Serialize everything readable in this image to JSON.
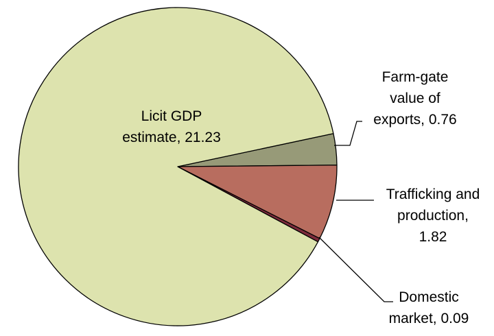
{
  "chart_data": {
    "type": "pie",
    "title": "",
    "legend": "none",
    "slices": [
      {
        "name": "Licit GDP estimate",
        "value": 21.23,
        "color": "#dde3ae",
        "label_lines": [
          "Licit GDP",
          "estimate, 21.23"
        ]
      },
      {
        "name": "Farm-gate value of exports",
        "value": 0.76,
        "color": "#979a78",
        "label_lines": [
          "Farm-gate",
          "value of",
          "exports, 0.76"
        ]
      },
      {
        "name": "Trafficking and production",
        "value": 1.82,
        "color": "#b86d5f",
        "label_lines": [
          "Trafficking and",
          "production,",
          "1.82"
        ]
      },
      {
        "name": "Domestic market",
        "value": 0.09,
        "color": "#7b2b3b",
        "label_lines": [
          "Domestic",
          "market, 0.09"
        ]
      }
    ]
  }
}
